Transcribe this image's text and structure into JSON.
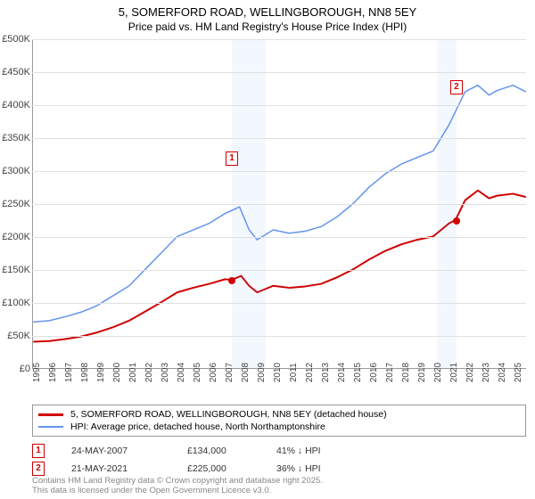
{
  "title": {
    "line1": "5, SOMERFORD ROAD, WELLINGBOROUGH, NN8 5EY",
    "line2": "Price paid vs. HM Land Registry's House Price Index (HPI)"
  },
  "chart": {
    "type": "line",
    "x_start_year": 1995,
    "x_end_year": 2025.8,
    "ylim": [
      0,
      500000
    ],
    "ytick_step": 50000,
    "yticks": [
      "£0",
      "£50K",
      "£100K",
      "£150K",
      "£200K",
      "£250K",
      "£300K",
      "£350K",
      "£400K",
      "£450K",
      "£500K"
    ],
    "xticks": [
      1995,
      1996,
      1997,
      1998,
      1999,
      2000,
      2001,
      2002,
      2003,
      2004,
      2005,
      2006,
      2007,
      2008,
      2009,
      2010,
      2011,
      2012,
      2013,
      2014,
      2015,
      2016,
      2017,
      2018,
      2019,
      2020,
      2021,
      2022,
      2023,
      2024,
      2025
    ],
    "background_color": "#ffffff",
    "grid_color": "#e0e0e0",
    "shade_color": "rgba(100,149,237,0.08)",
    "shade_ranges": [
      [
        2007.4,
        2009.5
      ],
      [
        2020.2,
        2021.4
      ]
    ],
    "series": {
      "hpi": {
        "label": "HPI: Average price, detached house, North Northamptonshire",
        "color": "#6495ed",
        "line_width": 1.5,
        "data": [
          [
            1995,
            70000
          ],
          [
            1996,
            72000
          ],
          [
            1997,
            78000
          ],
          [
            1998,
            85000
          ],
          [
            1999,
            95000
          ],
          [
            2000,
            110000
          ],
          [
            2001,
            125000
          ],
          [
            2002,
            150000
          ],
          [
            2003,
            175000
          ],
          [
            2004,
            200000
          ],
          [
            2005,
            210000
          ],
          [
            2006,
            220000
          ],
          [
            2007,
            235000
          ],
          [
            2007.9,
            245000
          ],
          [
            2008.5,
            210000
          ],
          [
            2009,
            195000
          ],
          [
            2010,
            210000
          ],
          [
            2011,
            205000
          ],
          [
            2012,
            208000
          ],
          [
            2013,
            215000
          ],
          [
            2014,
            230000
          ],
          [
            2015,
            250000
          ],
          [
            2016,
            275000
          ],
          [
            2017,
            295000
          ],
          [
            2018,
            310000
          ],
          [
            2019,
            320000
          ],
          [
            2020,
            330000
          ],
          [
            2021,
            370000
          ],
          [
            2022,
            420000
          ],
          [
            2022.8,
            430000
          ],
          [
            2023.5,
            415000
          ],
          [
            2024,
            422000
          ],
          [
            2025,
            430000
          ],
          [
            2025.8,
            420000
          ]
        ]
      },
      "price_paid": {
        "label": "5, SOMERFORD ROAD, WELLINGBOROUGH, NN8 5EY (detached house)",
        "color": "#d00000",
        "line_width": 2,
        "data": [
          [
            1995,
            40000
          ],
          [
            1996,
            41000
          ],
          [
            1997,
            44000
          ],
          [
            1998,
            48000
          ],
          [
            1999,
            54000
          ],
          [
            2000,
            62000
          ],
          [
            2001,
            72000
          ],
          [
            2002,
            86000
          ],
          [
            2003,
            100000
          ],
          [
            2004,
            115000
          ],
          [
            2005,
            122000
          ],
          [
            2006,
            128000
          ],
          [
            2007,
            135000
          ],
          [
            2007.4,
            134000
          ],
          [
            2008,
            140000
          ],
          [
            2008.5,
            125000
          ],
          [
            2009,
            115000
          ],
          [
            2010,
            125000
          ],
          [
            2011,
            122000
          ],
          [
            2012,
            124000
          ],
          [
            2013,
            128000
          ],
          [
            2014,
            138000
          ],
          [
            2015,
            150000
          ],
          [
            2016,
            165000
          ],
          [
            2017,
            178000
          ],
          [
            2018,
            188000
          ],
          [
            2019,
            195000
          ],
          [
            2020,
            200000
          ],
          [
            2021,
            220000
          ],
          [
            2021.4,
            225000
          ],
          [
            2022,
            255000
          ],
          [
            2022.8,
            270000
          ],
          [
            2023.5,
            258000
          ],
          [
            2024,
            262000
          ],
          [
            2025,
            265000
          ],
          [
            2025.8,
            260000
          ]
        ]
      }
    },
    "markers": [
      {
        "num": "1",
        "x": 2007.4,
        "y": 134000,
        "box_offset_y": -145
      },
      {
        "num": "2",
        "x": 2021.4,
        "y": 225000,
        "box_offset_y": -158
      }
    ]
  },
  "legend": {
    "items": [
      {
        "color": "#d00000",
        "width": 3,
        "label_key": "chart.series.price_paid.label"
      },
      {
        "color": "#6495ed",
        "width": 2,
        "label_key": "chart.series.hpi.label"
      }
    ]
  },
  "events": [
    {
      "num": "1",
      "date": "24-MAY-2007",
      "price": "£134,000",
      "delta": "41% ↓ HPI"
    },
    {
      "num": "2",
      "date": "21-MAY-2021",
      "price": "£225,000",
      "delta": "36% ↓ HPI"
    }
  ],
  "footer": {
    "line1": "Contains HM Land Registry data © Crown copyright and database right 2025.",
    "line2": "This data is licensed under the Open Government Licence v3.0."
  }
}
